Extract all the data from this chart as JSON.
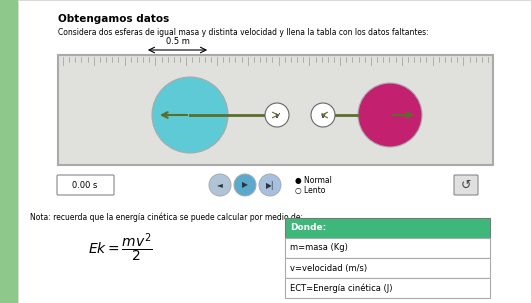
{
  "title": "Obtengamos datos",
  "subtitle": "Considera dos esferas de igual masa y distinta velocidad y llena la tabla con los datos faltantes:",
  "ruler_label": "0.5 m",
  "sphere1_color": "#5ecad6",
  "sphere2_color": "#c42070",
  "arrow_color": "#5a6e2a",
  "time_label": "0.00 s",
  "normal_label": "Normal",
  "lento_label": "Lento",
  "note_text": "Nota: recuerda que la energía cinética se puede calcular por medio de:",
  "table_header": "Donde:",
  "table_header_bg": "#3db87a",
  "table_row1": "m=masa (Kg)",
  "table_row2": "v=velocidad (m/s)",
  "table_row3": "ECT=Energía cinética (J)",
  "page_bg": "#f5f5f0",
  "stripe_color": "#8ec88a",
  "sim_box_bg": "#e0e0dc",
  "sim_box_border": "#aaaaaa"
}
